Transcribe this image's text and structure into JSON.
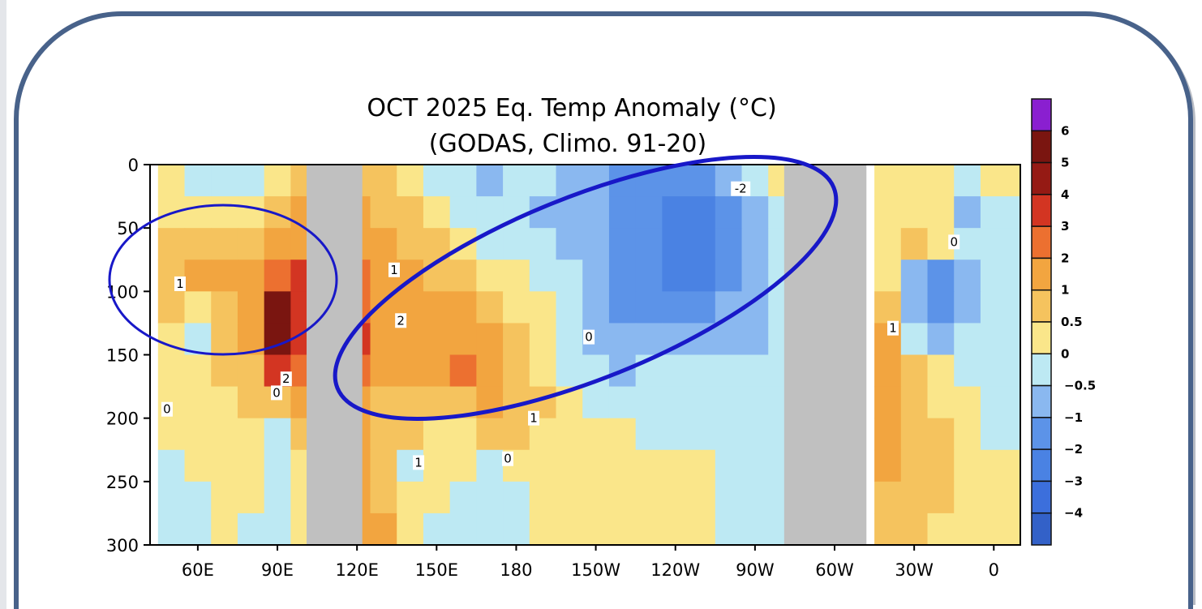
{
  "chart_data": {
    "type": "heatmap",
    "title": "OCT 2025 Eq. Temp Anomaly (°C)",
    "subtitle": "(GODAS,  Climo. 91-20)",
    "xlabel": "",
    "ylabel": "",
    "x_tick_labels": [
      "60E",
      "90E",
      "120E",
      "150E",
      "180",
      "150W",
      "120W",
      "90W",
      "60W",
      "30W",
      "0"
    ],
    "x_tick_values": [
      60,
      90,
      120,
      150,
      180,
      210,
      240,
      270,
      300,
      330,
      360
    ],
    "xlim": [
      42,
      370
    ],
    "y_tick_labels": [
      "0",
      "50",
      "100",
      "150",
      "200",
      "250",
      "300"
    ],
    "y_tick_values": [
      0,
      50,
      100,
      150,
      200,
      250,
      300
    ],
    "ylim": [
      300,
      0
    ],
    "longitudes": [
      50,
      60,
      70,
      80,
      90,
      100,
      110,
      120,
      130,
      140,
      150,
      160,
      170,
      180,
      190,
      200,
      210,
      220,
      230,
      240,
      250,
      260,
      270,
      280,
      290,
      300,
      310,
      320,
      330,
      340,
      350,
      360
    ],
    "depths": [
      12.5,
      37.5,
      62.5,
      87.5,
      112.5,
      137.5,
      162.5,
      187.5,
      212.5,
      237.5,
      262.5,
      287.5
    ],
    "land_ranges": [
      [
        101,
        122
      ],
      [
        281,
        312
      ]
    ],
    "values": [
      [
        0.3,
        -0.3,
        -0.3,
        -0.3,
        0.3,
        0.7,
        null,
        0.7,
        0.7,
        0.3,
        -0.3,
        -0.3,
        -0.7,
        -0.3,
        -0.3,
        -1,
        -1,
        -1.5,
        -1.5,
        -1.5,
        -1.5,
        -1,
        -0.3,
        0.3,
        null,
        null,
        null,
        0.3,
        0.3,
        0.3,
        -0.3,
        0.3
      ],
      [
        0.3,
        0.3,
        0.3,
        0.3,
        0.7,
        1.2,
        null,
        1.2,
        0.7,
        0.7,
        0.3,
        -0.3,
        -0.3,
        -0.3,
        -0.7,
        -1,
        -1,
        -1.5,
        -1.5,
        -2.2,
        -2.5,
        -1.5,
        -0.7,
        -0.3,
        null,
        null,
        null,
        0.3,
        0.3,
        0.3,
        -0.7,
        -0.3
      ],
      [
        0.7,
        0.7,
        0.7,
        0.7,
        1.2,
        1.5,
        null,
        1.5,
        1.2,
        0.7,
        0.7,
        0.3,
        -0.3,
        -0.3,
        -0.3,
        -0.7,
        -1,
        -1.5,
        -1.5,
        -2.2,
        -2.5,
        -1.5,
        -0.7,
        -0.3,
        null,
        null,
        null,
        0.3,
        0.7,
        0.3,
        -0.3,
        -0.3
      ],
      [
        0.7,
        1.2,
        1.2,
        1.5,
        2.5,
        3,
        null,
        2.5,
        1.5,
        1.2,
        0.7,
        0.7,
        0.3,
        0.3,
        -0.3,
        -0.3,
        -1,
        -1.5,
        -1.5,
        -2.2,
        -2.2,
        -1.5,
        -0.7,
        -0.3,
        null,
        null,
        null,
        0.3,
        -1,
        -1.5,
        -0.7,
        -0.3
      ],
      [
        0.7,
        0.3,
        0.7,
        1.5,
        5.5,
        3.5,
        null,
        2.5,
        1.5,
        1.2,
        1.5,
        1.2,
        0.7,
        0.3,
        0.3,
        -0.3,
        -0.7,
        -1.5,
        -1.5,
        -1.5,
        -1.5,
        -1,
        -0.7,
        -0.3,
        null,
        null,
        null,
        0.7,
        -1,
        -1.5,
        -0.7,
        -0.3
      ],
      [
        0.3,
        -0.3,
        0.7,
        1.2,
        5,
        3,
        null,
        3,
        1.5,
        1.2,
        1.2,
        1.5,
        1.2,
        0.7,
        0.3,
        -0.3,
        -0.7,
        -1,
        -1,
        -1,
        -1,
        -1,
        -0.7,
        -0.3,
        null,
        null,
        null,
        1.2,
        -0.3,
        -0.7,
        -0.3,
        -0.3
      ],
      [
        0.3,
        0.3,
        0.7,
        0.7,
        3,
        2.5,
        null,
        2.5,
        1.2,
        1.2,
        1.2,
        2.5,
        1.2,
        0.7,
        0.3,
        -0.3,
        -0.3,
        -0.7,
        -0.3,
        -0.3,
        -0.3,
        -0.3,
        -0.3,
        -0.3,
        null,
        null,
        null,
        1.5,
        0.7,
        0.3,
        -0.3,
        -0.3
      ],
      [
        0.3,
        0.3,
        0.3,
        0.7,
        0.7,
        1.2,
        null,
        1.2,
        0.7,
        0.7,
        0.7,
        0.7,
        1.2,
        0.7,
        0.7,
        0.3,
        -0.3,
        -0.3,
        -0.3,
        -0.3,
        -0.3,
        -0.3,
        -0.3,
        -0.3,
        null,
        null,
        null,
        1.2,
        0.7,
        0.3,
        0.3,
        -0.3
      ],
      [
        0.3,
        0.3,
        0.3,
        0.3,
        -0.3,
        0.7,
        null,
        1.2,
        0.7,
        0.7,
        0.3,
        0.3,
        0.7,
        0.7,
        0.3,
        0.3,
        0.3,
        0.3,
        -0.3,
        -0.3,
        -0.3,
        -0.3,
        -0.3,
        -0.3,
        null,
        null,
        null,
        1.2,
        0.7,
        0.7,
        0.3,
        -0.3
      ],
      [
        -0.3,
        0.3,
        0.3,
        0.3,
        -0.3,
        0.3,
        null,
        1.2,
        0.7,
        -0.3,
        0.3,
        0.3,
        -0.3,
        0.3,
        0.3,
        0.3,
        0.3,
        0.3,
        0.3,
        0.3,
        0.3,
        -0.3,
        -0.3,
        -0.3,
        null,
        null,
        null,
        1.2,
        0.7,
        0.7,
        0.3,
        0.3
      ],
      [
        -0.3,
        -0.3,
        0.3,
        0.3,
        -0.3,
        0.3,
        null,
        1.2,
        0.7,
        0.3,
        0.3,
        -0.3,
        -0.3,
        -0.3,
        0.3,
        0.3,
        0.3,
        0.3,
        0.3,
        0.3,
        0.3,
        -0.3,
        -0.3,
        -0.3,
        null,
        null,
        null,
        0.7,
        0.7,
        0.7,
        0.3,
        0.3
      ],
      [
        -0.3,
        -0.3,
        0.3,
        -0.3,
        -0.3,
        0.3,
        null,
        1.2,
        1.2,
        0.3,
        -0.3,
        -0.3,
        -0.3,
        -0.3,
        0.3,
        0.3,
        0.3,
        0.3,
        0.3,
        0.3,
        0.3,
        -0.3,
        -0.3,
        -0.3,
        null,
        null,
        null,
        0.7,
        0.7,
        0.3,
        0.3,
        0.3
      ]
    ],
    "colorbar": {
      "labels": [
        "6",
        "5",
        "4",
        "3",
        "2",
        "1",
        "0.5",
        "0",
        "-0.5",
        "-1",
        "-2",
        "-3",
        "-4"
      ],
      "levels": [
        -4,
        -3,
        -2,
        -1,
        -0.5,
        0,
        0.5,
        1,
        2,
        3,
        4,
        5,
        6
      ],
      "colors": [
        "#3361c8",
        "#3c6fdc",
        "#4a82e3",
        "#5c93e8",
        "#8ab8f0",
        "#bde9f3",
        "#fae68a",
        "#f5c35e",
        "#f2a540",
        "#ec7030",
        "#d33522",
        "#951a14",
        "#7a1510",
        "#8a1fd0"
      ]
    },
    "land_color": "#c0c0c0",
    "contour_labels": [
      {
        "text": "1",
        "lon": 53.3,
        "depth": 94
      },
      {
        "text": "1",
        "lon": 134,
        "depth": 83
      },
      {
        "text": "2",
        "lon": 136.5,
        "depth": 123
      },
      {
        "text": "0",
        "lon": 207.4,
        "depth": 136
      },
      {
        "text": "-2",
        "lon": 264.6,
        "depth": 19
      },
      {
        "text": "0",
        "lon": 345,
        "depth": 61
      },
      {
        "text": "1",
        "lon": 322,
        "depth": 129
      },
      {
        "text": "0",
        "lon": 48.4,
        "depth": 193
      },
      {
        "text": "0",
        "lon": 89.7,
        "depth": 180
      },
      {
        "text": "2",
        "lon": 93.3,
        "depth": 169
      },
      {
        "text": "1",
        "lon": 186.6,
        "depth": 200
      },
      {
        "text": "1",
        "lon": 143.2,
        "depth": 235
      },
      {
        "text": "0",
        "lon": 176.8,
        "depth": 232
      }
    ],
    "annotation_color": "#1818c8",
    "frame_color": "#48628a"
  }
}
